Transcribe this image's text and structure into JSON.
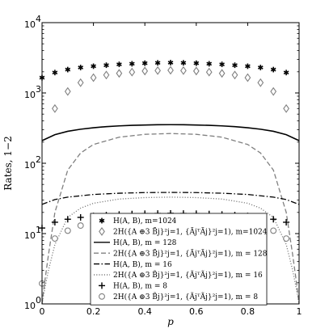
{
  "chart_data": {
    "type": "line",
    "xlabel": "p",
    "ylabel": "Rates, 1−2",
    "xlim": [
      0,
      1
    ],
    "ylim": [
      1,
      10000
    ],
    "yscale": "log",
    "x_ticks": [
      "0",
      "0.2",
      "0.4",
      "0.6",
      "0.8",
      "1"
    ],
    "y_ticks": [
      {
        "base": "10",
        "exp": "0"
      },
      {
        "base": "10",
        "exp": "1"
      },
      {
        "base": "10",
        "exp": "2"
      },
      {
        "base": "10",
        "exp": "3"
      },
      {
        "base": "10",
        "exp": "4"
      }
    ],
    "grid": false,
    "legend_position": "bottom-center",
    "series": [
      {
        "name": "H(A,B), m=1024",
        "style": "marker",
        "marker": "asterisk",
        "color": "#000000",
        "x": [
          0,
          0.05,
          0.1,
          0.15,
          0.2,
          0.25,
          0.3,
          0.35,
          0.4,
          0.45,
          0.5,
          0.55,
          0.6,
          0.65,
          0.7,
          0.75,
          0.8,
          0.85,
          0.9,
          0.95
        ],
        "y": [
          1650,
          1950,
          2150,
          2300,
          2400,
          2480,
          2550,
          2600,
          2650,
          2680,
          2700,
          2680,
          2650,
          2600,
          2550,
          2480,
          2400,
          2300,
          2150,
          1950
        ]
      },
      {
        "name": "2H({A ⊕3 B̃j}, {Ã_j^T Ã_j}), m=1024",
        "style": "marker",
        "marker": "diamond",
        "color": "#808080",
        "x": [
          0.05,
          0.1,
          0.15,
          0.2,
          0.25,
          0.3,
          0.35,
          0.4,
          0.45,
          0.5,
          0.55,
          0.6,
          0.65,
          0.7,
          0.75,
          0.8,
          0.85,
          0.9,
          0.95
        ],
        "y": [
          600,
          1050,
          1400,
          1650,
          1800,
          1900,
          1980,
          2050,
          2080,
          2100,
          2080,
          2050,
          1980,
          1900,
          1800,
          1650,
          1400,
          1050,
          600
        ]
      },
      {
        "name": "H(A,B), m = 128",
        "style": "line",
        "dash": "solid",
        "color": "#000000",
        "x": [
          0,
          0.05,
          0.1,
          0.15,
          0.2,
          0.25,
          0.3,
          0.35,
          0.4,
          0.45,
          0.5,
          0.55,
          0.6,
          0.65,
          0.7,
          0.75,
          0.8,
          0.85,
          0.9,
          0.95,
          1
        ],
        "y": [
          210,
          255,
          285,
          305,
          320,
          332,
          340,
          346,
          350,
          353,
          354,
          353,
          350,
          346,
          340,
          332,
          320,
          305,
          285,
          255,
          210
        ]
      },
      {
        "name": "2H({A ⊕3 B̃j}, {Ã_j^T Ã_j}), m = 128",
        "style": "line",
        "dash": "dashed",
        "color": "#808080",
        "x": [
          0,
          0.01,
          0.025,
          0.05,
          0.1,
          0.15,
          0.2,
          0.3,
          0.4,
          0.5,
          0.6,
          0.7,
          0.8,
          0.85,
          0.9,
          0.95,
          0.975,
          0.99,
          1
        ],
        "y": [
          1,
          2,
          5,
          20,
          80,
          140,
          185,
          235,
          258,
          265,
          258,
          235,
          185,
          140,
          80,
          20,
          5,
          2,
          1
        ]
      },
      {
        "name": "H(A,B), m = 16",
        "style": "line",
        "dash": "dashdot",
        "color": "#000000",
        "x": [
          0,
          0.05,
          0.1,
          0.2,
          0.3,
          0.4,
          0.5,
          0.6,
          0.7,
          0.8,
          0.9,
          0.95,
          1
        ],
        "y": [
          26,
          30.5,
          33,
          36,
          37.5,
          38.3,
          38.5,
          38.3,
          37.5,
          36,
          33,
          30.5,
          26
        ]
      },
      {
        "name": "2H({A ⊕3 B̃j}, {Ã_j^T Ã_j}), m = 16",
        "style": "line",
        "dash": "dotted",
        "color": "#808080",
        "x": [
          0,
          0.01,
          0.025,
          0.05,
          0.1,
          0.15,
          0.2,
          0.3,
          0.4,
          0.5,
          0.6,
          0.7,
          0.8,
          0.85,
          0.9,
          0.95,
          0.975,
          0.99,
          1
        ],
        "y": [
          1,
          1.6,
          3,
          7,
          17,
          23,
          27,
          31,
          32.5,
          33,
          32.5,
          31,
          27,
          23,
          17,
          7,
          3,
          1.6,
          1
        ]
      },
      {
        "name": "H(A,B), m = 8",
        "style": "marker",
        "marker": "plus",
        "color": "#000000",
        "x": [
          0,
          0.05,
          0.1,
          0.15,
          0.2,
          0.25,
          0.3,
          0.35,
          0.4,
          0.45,
          0.5,
          0.55,
          0.6,
          0.65,
          0.7,
          0.75,
          0.8,
          0.85,
          0.9,
          0.95
        ],
        "y": [
          12,
          14.5,
          16,
          17,
          17.8,
          18.3,
          18.7,
          19,
          19.2,
          19.3,
          19.4,
          19.3,
          19.2,
          19,
          18.7,
          18.3,
          17.8,
          17,
          16,
          14.5
        ]
      },
      {
        "name": "2H({A ⊕3 B̃j}, {Ã_j^T Ã_j}), m = 8",
        "style": "marker",
        "marker": "circle",
        "color": "#808080",
        "x": [
          0,
          0.05,
          0.1,
          0.15,
          0.2,
          0.25,
          0.3,
          0.35,
          0.4,
          0.45,
          0.5,
          0.55,
          0.6,
          0.65,
          0.7,
          0.75,
          0.8,
          0.85,
          0.9,
          0.95
        ],
        "y": [
          1.95,
          8.5,
          11,
          13,
          14,
          14.5,
          14.8,
          15,
          15.1,
          15.2,
          15.2,
          15.2,
          15.1,
          15,
          14.8,
          14.5,
          14,
          13,
          11,
          8.5
        ]
      }
    ]
  },
  "legend": [
    {
      "marker": "asterisk",
      "color": "#000000",
      "label": "H(A, B), m=1024"
    },
    {
      "marker": "diamond",
      "color": "#808080",
      "label": "2H({A ⊕3 B̃j}²j=1, {ÃjᵀÃj}²j=1), m=1024"
    },
    {
      "line": "solid",
      "color": "#000000",
      "label": "H(A, B), m = 128"
    },
    {
      "line": "dashed",
      "color": "#808080",
      "label": "2H({A ⊕3 B̃j}²j=1, {ÃjᵀÃj}²j=1), m = 128"
    },
    {
      "line": "dashdot",
      "color": "#000000",
      "label": "H(A, B), m = 16"
    },
    {
      "line": "dotted",
      "color": "#808080",
      "label": "2H({A ⊕3 B̃j}²j=1, {ÃjᵀÃj}²j=1), m = 16"
    },
    {
      "marker": "plus",
      "color": "#000000",
      "label": "H(A, B), m = 8"
    },
    {
      "marker": "circle",
      "color": "#808080",
      "label": "2H({A ⊕3 B̃j}²j=1, {ÃjᵀÃj}²j=1), m = 8"
    }
  ]
}
